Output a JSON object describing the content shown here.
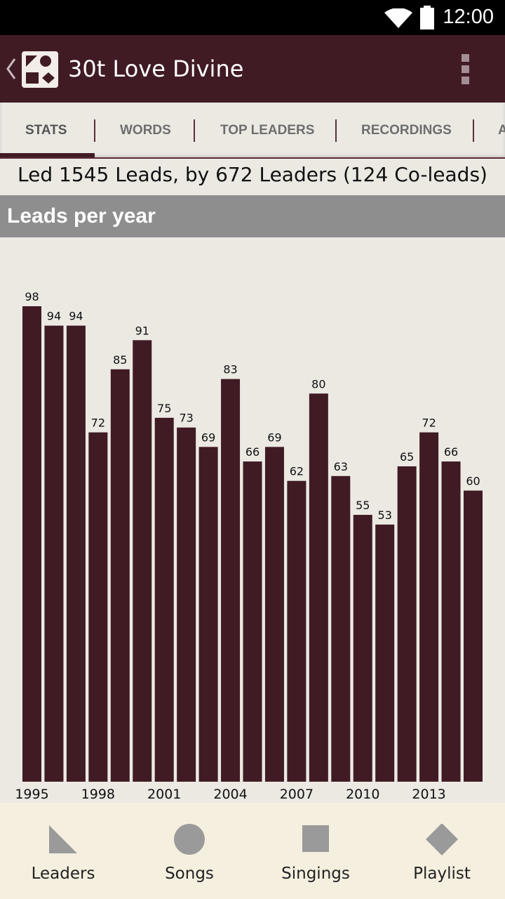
{
  "status_bar": {
    "time": "12:00",
    "wifi_icon": "wifi-icon",
    "battery_icon": "battery-icon"
  },
  "app_bar": {
    "title": "30t Love Divine",
    "back_icon": "chevron-left-icon",
    "logo_icon": "shape-note-logo-icon",
    "menu_icon": "more-vert-icon",
    "bar_color": "#401b24"
  },
  "tabs": [
    {
      "label": "STATS",
      "active": true
    },
    {
      "label": "WORDS",
      "active": false
    },
    {
      "label": "TOP LEADERS",
      "active": false
    },
    {
      "label": "RECORDINGS",
      "active": false
    },
    {
      "label": "A",
      "active": false
    }
  ],
  "summary": {
    "prefix": "Led ",
    "leads": "1545",
    "middle": " Leads, by 672 Leaders (124 Co-leads)"
  },
  "section": {
    "title": "Leads per year"
  },
  "chart_data": {
    "type": "bar",
    "title": "Leads per year",
    "categories": [
      "1995",
      "1996",
      "1997",
      "1998",
      "1999",
      "2000",
      "2001",
      "2002",
      "2003",
      "2004",
      "2005",
      "2006",
      "2007",
      "2008",
      "2009",
      "2010",
      "2011",
      "2012",
      "2013",
      "2014",
      "2015"
    ],
    "values": [
      98,
      94,
      94,
      72,
      85,
      91,
      75,
      73,
      69,
      83,
      66,
      69,
      62,
      80,
      63,
      55,
      53,
      65,
      72,
      66,
      60
    ],
    "tick_labels": [
      "1995",
      "",
      "",
      "1998",
      "",
      "",
      "2001",
      "",
      "",
      "2004",
      "",
      "",
      "2007",
      "",
      "",
      "2010",
      "",
      "",
      "2013",
      "",
      ""
    ],
    "ylim": [
      0,
      98
    ],
    "bar_color": "#401b24",
    "grid": false,
    "data_labels": true
  },
  "bottom_nav": [
    {
      "label": "Leaders",
      "icon": "triangle-icon"
    },
    {
      "label": "Songs",
      "icon": "circle-icon"
    },
    {
      "label": "Singings",
      "icon": "square-icon"
    },
    {
      "label": "Playlist",
      "icon": "diamond-icon"
    }
  ]
}
